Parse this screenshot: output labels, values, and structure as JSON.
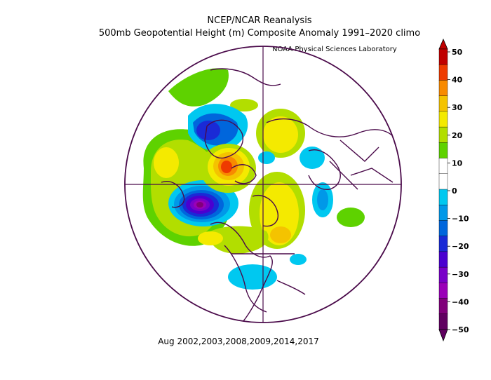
{
  "title_line1": "NCEP/NCAR Reanalysis",
  "title_line2": "500mb Geopotential Height (m) Composite Anomaly 1991–2020 climo",
  "credit": "NOAA Physical Sciences Laboratory",
  "footer": "Aug 2002,2003,2008,2009,2014,2017",
  "colorbar": {
    "labels": [
      "50",
      "40",
      "30",
      "20",
      "10",
      "0",
      "−10",
      "−20",
      "−30",
      "−40",
      "−50"
    ],
    "colors": [
      "#c00000",
      "#ee3a00",
      "#f88a00",
      "#f4c300",
      "#f4ea00",
      "#b2de00",
      "#5ed200",
      "#ffffff",
      "#ffffff",
      "#00c8f0",
      "#0098e8",
      "#0066dc",
      "#1a2ad6",
      "#4a00d0",
      "#7800c8",
      "#9a00b8",
      "#80007a",
      "#600060"
    ]
  },
  "map": {
    "projection": "north-polar-stereographic",
    "field": "500mb geopotential height anomaly",
    "units": "m"
  }
}
